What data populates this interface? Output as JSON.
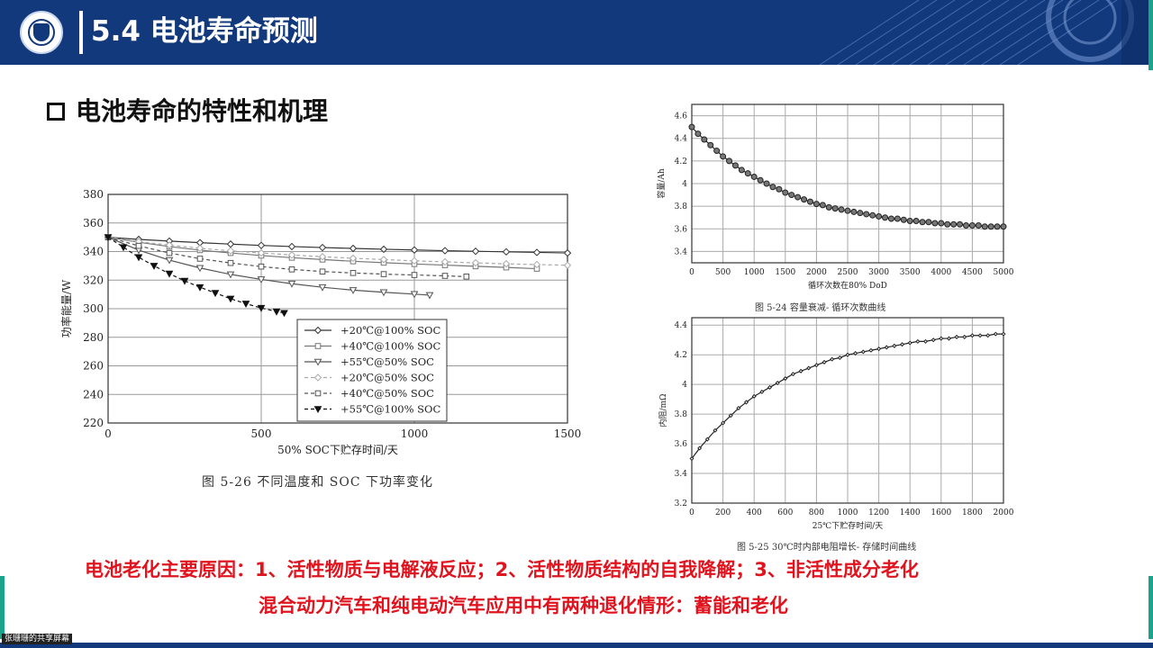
{
  "header": {
    "title": "5.4 电池寿命预测"
  },
  "section": {
    "heading": "电池寿命的特性和机理"
  },
  "footer": {
    "share_label": "张珊珊的共享屏幕"
  },
  "notes": {
    "line1": "电池老化主要原因：1、活性物质与电解液反应；2、活性物质结构的自我降解；3、非活性成分老化",
    "line2": "混合动力汽车和纯电动汽车应用中有两种退化情形：蓄能和老化"
  },
  "colors": {
    "header_bg": "#12397c",
    "accent_green": "#1aa58a",
    "note_red": "#e0141f"
  },
  "chart_data": [
    {
      "id": "fig-5-26",
      "type": "line",
      "caption": "图 5-26   不同温度和 SOC 下功率变化",
      "xlabel": "50% SOC下贮存时间/天",
      "ylabel": "功率能量/W",
      "xlim": [
        0,
        1500
      ],
      "ylim": [
        220,
        380
      ],
      "xticks": [
        0,
        500,
        1000,
        1500
      ],
      "yticks": [
        220,
        240,
        260,
        280,
        300,
        320,
        340,
        360,
        380
      ],
      "grid": true,
      "legend_position": "bottom-center",
      "series": [
        {
          "name": "+20℃@100% SOC",
          "marker": "diamond",
          "dash": false,
          "color": "#333333",
          "x": [
            0,
            100,
            200,
            300,
            400,
            500,
            600,
            700,
            800,
            900,
            1000,
            1100,
            1200,
            1300,
            1400,
            1500
          ],
          "y": [
            350,
            348.5,
            347.3,
            346.2,
            345.2,
            344.3,
            343.5,
            342.8,
            342.2,
            341.6,
            341.1,
            340.6,
            340.2,
            339.8,
            339.4,
            339
          ]
        },
        {
          "name": "+40℃@100% SOC",
          "marker": "square",
          "dash": false,
          "color": "#777777",
          "x": [
            0,
            100,
            200,
            300,
            400,
            500,
            600,
            700,
            800,
            900,
            1000,
            1100,
            1200,
            1300,
            1400
          ],
          "y": [
            350,
            346.5,
            343.5,
            341,
            339,
            337.2,
            335.7,
            334.4,
            333.2,
            332.2,
            331.3,
            330.5,
            329.7,
            328.9,
            328
          ]
        },
        {
          "name": "+55℃@50% SOC",
          "marker": "triangle",
          "dash": false,
          "color": "#555555",
          "x": [
            0,
            100,
            200,
            300,
            400,
            500,
            600,
            700,
            800,
            900,
            1000,
            1050
          ],
          "y": [
            350,
            341,
            334,
            328.5,
            324,
            320.5,
            317.5,
            315,
            313,
            311.5,
            310.2,
            309.5
          ]
        },
        {
          "name": "+20℃@50% SOC",
          "marker": "diamond",
          "dash": true,
          "color": "#aaaaaa",
          "x": [
            0,
            100,
            200,
            300,
            400,
            500,
            600,
            700,
            800,
            900,
            1000,
            1100,
            1200,
            1300,
            1400,
            1500
          ],
          "y": [
            350,
            347,
            344.5,
            342.3,
            340.5,
            339,
            337.6,
            336.4,
            335.3,
            334.4,
            333.5,
            332.8,
            332.1,
            331.4,
            330.9,
            330.4
          ]
        },
        {
          "name": "+40℃@50% SOC",
          "marker": "square",
          "dash": true,
          "color": "#555555",
          "x": [
            0,
            100,
            200,
            300,
            400,
            500,
            600,
            700,
            800,
            900,
            1000,
            1100,
            1170
          ],
          "y": [
            350,
            344,
            339,
            335,
            332,
            329.5,
            327.5,
            326,
            325,
            324.2,
            323.6,
            323,
            322.5
          ]
        },
        {
          "name": "+55℃@100% SOC",
          "marker": "triangle-filled",
          "dash": true,
          "color": "#111111",
          "x": [
            0,
            50,
            100,
            150,
            200,
            250,
            300,
            350,
            400,
            450,
            500,
            550,
            575
          ],
          "y": [
            350,
            343,
            336,
            330,
            324.5,
            319.5,
            315,
            311,
            307,
            303.5,
            300.5,
            298,
            297
          ]
        }
      ]
    },
    {
      "id": "fig-5-24",
      "type": "line",
      "caption": "图 5-24    容量衰减- 循环次数曲线",
      "xlabel": "循环次数在80% DoD",
      "ylabel": "容量/Ah",
      "xlim": [
        0,
        5000
      ],
      "ylim": [
        3.3,
        4.7
      ],
      "xticks": [
        0,
        500,
        1000,
        1500,
        2000,
        2500,
        3000,
        3500,
        4000,
        4500,
        5000
      ],
      "yticks": [
        3.4,
        3.6,
        3.8,
        4.0,
        4.2,
        4.4,
        4.6
      ],
      "ytick_labels": [
        "3.4",
        "3.6",
        "3.8",
        "4",
        "4.2",
        "4.4",
        "4.6"
      ],
      "grid": true,
      "series": [
        {
          "marker": "circle",
          "color": "#222222",
          "x": [
            0,
            100,
            200,
            300,
            400,
            500,
            600,
            700,
            800,
            900,
            1000,
            1100,
            1200,
            1300,
            1400,
            1500,
            1600,
            1700,
            1800,
            1900,
            2000,
            2100,
            2200,
            2300,
            2400,
            2500,
            2600,
            2700,
            2800,
            2900,
            3000,
            3100,
            3200,
            3300,
            3400,
            3500,
            3600,
            3700,
            3800,
            3900,
            4000,
            4100,
            4200,
            4300,
            4400,
            4500,
            4600,
            4700,
            4800,
            4900,
            5000
          ],
          "y": [
            4.5,
            4.44,
            4.39,
            4.34,
            4.29,
            4.24,
            4.2,
            4.16,
            4.12,
            4.09,
            4.06,
            4.03,
            4.0,
            3.97,
            3.95,
            3.92,
            3.9,
            3.88,
            3.86,
            3.84,
            3.82,
            3.81,
            3.79,
            3.78,
            3.77,
            3.76,
            3.75,
            3.74,
            3.73,
            3.72,
            3.71,
            3.7,
            3.69,
            3.69,
            3.68,
            3.67,
            3.67,
            3.66,
            3.66,
            3.65,
            3.65,
            3.64,
            3.64,
            3.64,
            3.63,
            3.63,
            3.63,
            3.62,
            3.62,
            3.62,
            3.62
          ]
        }
      ]
    },
    {
      "id": "fig-5-25",
      "type": "line",
      "caption": "图 5-25   30℃时内部电阻增长- 存储时间曲线",
      "xlabel": "25℃下贮存时间/天",
      "ylabel": "内阻/mΩ",
      "xlim": [
        0,
        2000
      ],
      "ylim": [
        3.2,
        4.45
      ],
      "xticks": [
        0,
        200,
        400,
        600,
        800,
        1000,
        1200,
        1400,
        1600,
        1800,
        2000
      ],
      "yticks": [
        3.2,
        3.4,
        3.6,
        3.8,
        4.0,
        4.2,
        4.4
      ],
      "grid": true,
      "series": [
        {
          "marker": "diamond-small",
          "color": "#222222",
          "x": [
            0,
            50,
            100,
            150,
            200,
            250,
            300,
            350,
            400,
            450,
            500,
            550,
            600,
            650,
            700,
            750,
            800,
            850,
            900,
            950,
            1000,
            1050,
            1100,
            1150,
            1200,
            1250,
            1300,
            1350,
            1400,
            1450,
            1500,
            1550,
            1600,
            1650,
            1700,
            1750,
            1800,
            1850,
            1900,
            1950,
            2000
          ],
          "y": [
            3.5,
            3.57,
            3.63,
            3.69,
            3.74,
            3.79,
            3.84,
            3.88,
            3.92,
            3.95,
            3.98,
            4.01,
            4.04,
            4.07,
            4.09,
            4.11,
            4.13,
            4.15,
            4.17,
            4.18,
            4.2,
            4.21,
            4.22,
            4.23,
            4.24,
            4.25,
            4.26,
            4.27,
            4.28,
            4.29,
            4.29,
            4.3,
            4.31,
            4.31,
            4.32,
            4.32,
            4.33,
            4.33,
            4.33,
            4.34,
            4.34
          ]
        }
      ]
    }
  ]
}
